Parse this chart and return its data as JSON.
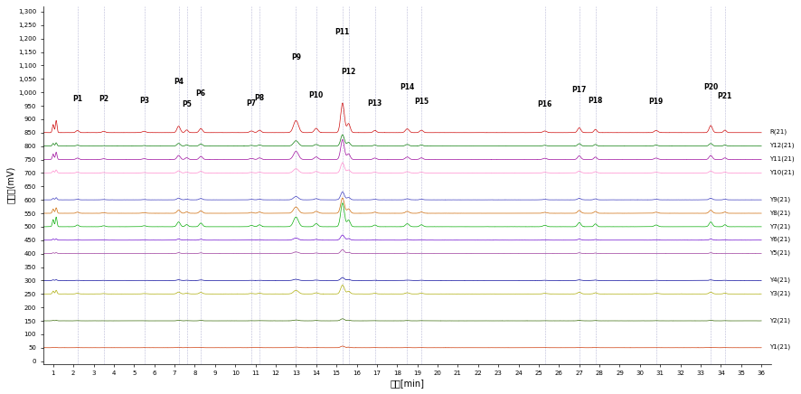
{
  "x_min": 0,
  "x_max": 36,
  "y_label": "吉尼度(mV)",
  "x_label": "时间[min]",
  "y_ticks": [
    0,
    50,
    100,
    150,
    200,
    250,
    300,
    350,
    400,
    450,
    500,
    550,
    600,
    650,
    700,
    750,
    800,
    850,
    900,
    950,
    1000,
    1050,
    1100,
    1150,
    1200,
    1250,
    1300
  ],
  "traces": [
    "R(21)",
    "Y12(21)",
    "Y11(21)",
    "Y10(21)",
    "Y9(21)",
    "Y8(21)",
    "Y7(21)",
    "Y6(21)",
    "Y5(21)",
    "Y4(21)",
    "Y3(21)",
    "Y2(21)",
    "Y1(21)"
  ],
  "colors": [
    "#cc0000",
    "#007700",
    "#990099",
    "#ff88cc",
    "#3333bb",
    "#cc6600",
    "#00aa00",
    "#6600cc",
    "#993399",
    "#000099",
    "#aaaa00",
    "#336600",
    "#cc3300"
  ],
  "offsets": [
    850,
    800,
    750,
    700,
    600,
    550,
    500,
    450,
    400,
    300,
    250,
    150,
    50
  ],
  "peak_times": [
    1.0,
    1.15,
    2.2,
    3.5,
    5.5,
    7.2,
    7.6,
    8.3,
    10.8,
    11.2,
    13.0,
    14.0,
    15.3,
    15.6,
    16.9,
    18.5,
    19.2,
    25.3,
    27.0,
    27.8,
    30.8,
    33.5,
    34.2
  ],
  "peak_widths": [
    0.04,
    0.04,
    0.07,
    0.08,
    0.09,
    0.08,
    0.07,
    0.08,
    0.09,
    0.08,
    0.12,
    0.09,
    0.09,
    0.08,
    0.08,
    0.09,
    0.08,
    0.09,
    0.08,
    0.07,
    0.09,
    0.08,
    0.07
  ],
  "peak_heights_ref": [
    30,
    45,
    8,
    5,
    5,
    20,
    10,
    14,
    6,
    9,
    45,
    16,
    110,
    28,
    8,
    14,
    9,
    6,
    18,
    12,
    8,
    22,
    9
  ],
  "dashed_positions": [
    2.2,
    3.5,
    5.5,
    7.2,
    7.6,
    8.3,
    10.8,
    11.2,
    13.0,
    14.0,
    15.3,
    15.6,
    16.9,
    18.5,
    19.2,
    25.3,
    27.0,
    27.8,
    30.8,
    33.5,
    34.2
  ],
  "peak_label_data": [
    [
      "P1",
      2.2,
      960
    ],
    [
      "P2",
      3.5,
      960
    ],
    [
      "P3",
      5.5,
      955
    ],
    [
      "P4",
      7.2,
      1025
    ],
    [
      "P5",
      7.6,
      940
    ],
    [
      "P6",
      8.3,
      980
    ],
    [
      "P7",
      10.8,
      945
    ],
    [
      "P8",
      11.2,
      965
    ],
    [
      "P9",
      13.0,
      1115
    ],
    [
      "P10",
      14.0,
      975
    ],
    [
      "P11",
      15.3,
      1210
    ],
    [
      "P12",
      15.6,
      1060
    ],
    [
      "P13",
      16.9,
      945
    ],
    [
      "P14",
      18.5,
      1005
    ],
    [
      "P15",
      19.2,
      950
    ],
    [
      "P16",
      25.3,
      940
    ],
    [
      "P17",
      27.0,
      995
    ],
    [
      "P18",
      27.8,
      955
    ],
    [
      "P19",
      30.8,
      950
    ],
    [
      "P20",
      33.5,
      1005
    ],
    [
      "P21",
      34.2,
      970
    ]
  ],
  "background_color": "#ffffff"
}
